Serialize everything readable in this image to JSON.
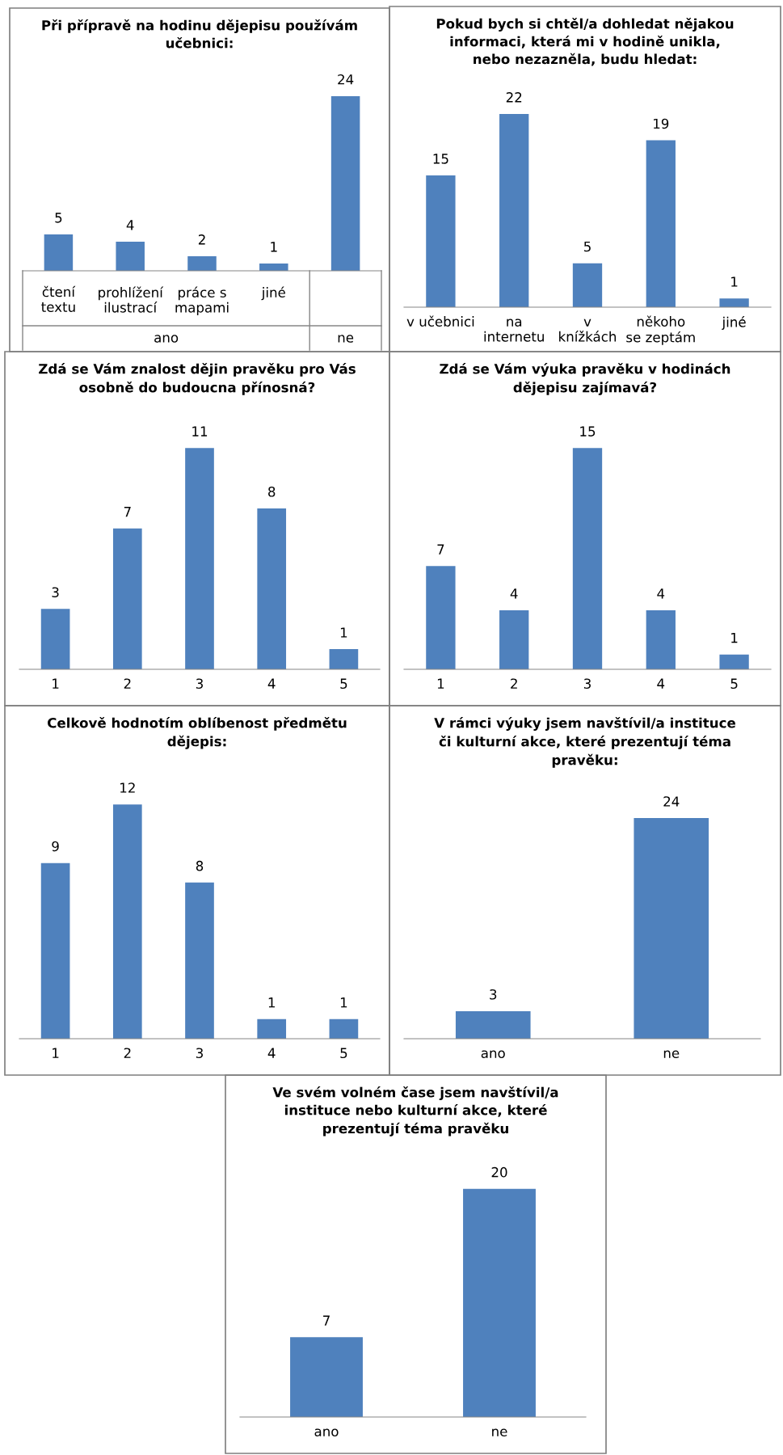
{
  "chart_data": [
    {
      "type": "bar",
      "title": "Při přípravě na hodinu dějepisu používám\nučebnici:",
      "categories": [
        "čtení\ntextu",
        "prohlížení\nilustrací",
        "práce s\nmapami",
        "jiné",
        null
      ],
      "values": [
        5,
        4,
        2,
        1,
        24
      ],
      "color": "#4f81bd",
      "data_labels": true,
      "annotations": [
        "ano",
        "ne"
      ]
    },
    {
      "type": "bar",
      "title": "Pokud bych si chtěl/a dohledat nějakou\ninformaci, která mi v hodině unikla,\nnebo nezazněla, budu hledat:",
      "categories": [
        "v učebnici",
        "na\ninternetu",
        "v\nknížkách",
        "někoho\nse zeptám",
        "jiné"
      ],
      "values": [
        15,
        22,
        5,
        19,
        1
      ],
      "color": "#4f81bd",
      "data_labels": true
    },
    {
      "type": "bar",
      "title": "Zdá se Vám znalost dějin pravěku pro Vás\nosobně do budoucna přínosná?",
      "categories": [
        "1",
        "2",
        "3",
        "4",
        "5"
      ],
      "values": [
        3,
        7,
        11,
        8,
        1
      ],
      "color": "#4f81bd",
      "data_labels": true
    },
    {
      "type": "bar",
      "title": "Zdá se Vám výuka pravěku v hodinách\ndějepisu zajímavá?",
      "categories": [
        "1",
        "2",
        "3",
        "4",
        "5"
      ],
      "values": [
        7,
        4,
        15,
        4,
        1
      ],
      "color": "#4f81bd",
      "data_labels": true
    },
    {
      "type": "bar",
      "title": "Celkově hodnotím oblíbenost předmětu\ndějepis:",
      "categories": [
        "1",
        "2",
        "3",
        "4",
        "5"
      ],
      "values": [
        9,
        12,
        8,
        1,
        1
      ],
      "color": "#4f81bd",
      "data_labels": true
    },
    {
      "type": "bar",
      "title": "V rámci výuky jsem navštívil/a instituce\nči kulturní akce, které prezentují téma\npravěku:",
      "categories": [
        "ano",
        "ne"
      ],
      "values": [
        3,
        24
      ],
      "color": "#4f81bd",
      "data_labels": true
    },
    {
      "type": "bar",
      "title": "Ve svém volném čase jsem navštívil/a\ninstituce nebo kulturní akce, které\nprezentují téma pravěku",
      "categories": [
        "ano",
        "ne"
      ],
      "values": [
        7,
        20
      ],
      "color": "#4f81bd",
      "data_labels": true
    }
  ]
}
